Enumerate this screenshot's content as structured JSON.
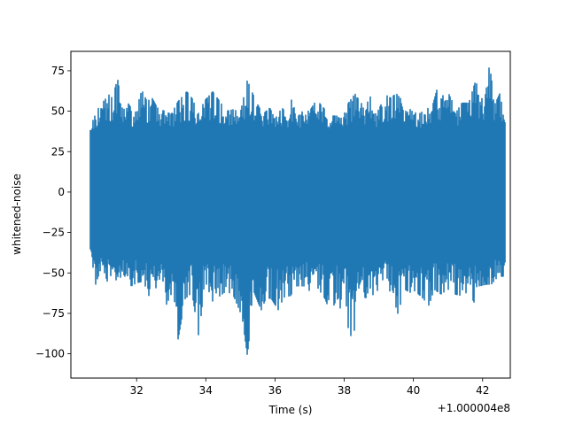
{
  "chart_data": {
    "type": "line",
    "title": "",
    "xlabel": "Time (s)",
    "ylabel": "whitened-noise",
    "x_offset_label": "+1.000004e8",
    "xlim": [
      30.1,
      42.8
    ],
    "ylim": [
      -115,
      87
    ],
    "x_ticks": [
      32,
      34,
      36,
      38,
      40,
      42
    ],
    "x_tick_labels": [
      "32",
      "34",
      "36",
      "38",
      "40",
      "42"
    ],
    "y_ticks": [
      75,
      50,
      25,
      0,
      -25,
      -50,
      -75,
      -100
    ],
    "y_tick_labels": [
      "75",
      "50",
      "25",
      "0",
      "−25",
      "−50",
      "−75",
      "−100"
    ],
    "grid": false,
    "series": [
      {
        "color": "#1f77b4",
        "x_range": [
          30.65,
          42.67
        ],
        "typical_range": [
          -35,
          35
        ],
        "max_envelope": [
          [
            30.65,
            38
          ],
          [
            30.75,
            45
          ],
          [
            30.9,
            52
          ],
          [
            31.0,
            55
          ],
          [
            31.2,
            60
          ],
          [
            31.3,
            58
          ],
          [
            31.45,
            70
          ],
          [
            31.6,
            50
          ],
          [
            31.75,
            55
          ],
          [
            31.95,
            48
          ],
          [
            32.15,
            63
          ],
          [
            32.3,
            56
          ],
          [
            32.45,
            58
          ],
          [
            32.6,
            52
          ],
          [
            32.8,
            50
          ],
          [
            33.0,
            48
          ],
          [
            33.2,
            56
          ],
          [
            33.45,
            62
          ],
          [
            33.6,
            58
          ],
          [
            33.8,
            48
          ],
          [
            33.95,
            56
          ],
          [
            34.2,
            62
          ],
          [
            34.4,
            56
          ],
          [
            34.6,
            50
          ],
          [
            34.8,
            51
          ],
          [
            35.0,
            49
          ],
          [
            35.2,
            69
          ],
          [
            35.45,
            56
          ],
          [
            35.65,
            48
          ],
          [
            35.85,
            52
          ],
          [
            36.0,
            45
          ],
          [
            36.2,
            52
          ],
          [
            36.4,
            47
          ],
          [
            36.5,
            60
          ],
          [
            36.6,
            45
          ],
          [
            36.8,
            50
          ],
          [
            37.0,
            50
          ],
          [
            37.2,
            57
          ],
          [
            37.4,
            52
          ],
          [
            37.6,
            47
          ],
          [
            37.8,
            47
          ],
          [
            38.0,
            51
          ],
          [
            38.25,
            59
          ],
          [
            38.4,
            62
          ],
          [
            38.6,
            52
          ],
          [
            38.75,
            59
          ],
          [
            38.95,
            49
          ],
          [
            39.2,
            60
          ],
          [
            39.35,
            58
          ],
          [
            39.5,
            61
          ],
          [
            39.7,
            56
          ],
          [
            39.95,
            50
          ],
          [
            40.15,
            48
          ],
          [
            40.35,
            51
          ],
          [
            40.55,
            53
          ],
          [
            40.7,
            65
          ],
          [
            40.9,
            58
          ],
          [
            41.0,
            67
          ],
          [
            41.2,
            48
          ],
          [
            41.4,
            55
          ],
          [
            41.6,
            55
          ],
          [
            41.8,
            69
          ],
          [
            41.9,
            61
          ],
          [
            42.05,
            55
          ],
          [
            42.2,
            79
          ],
          [
            42.35,
            54
          ],
          [
            42.5,
            61
          ],
          [
            42.67,
            40
          ]
        ],
        "min_envelope": [
          [
            30.65,
            -33
          ],
          [
            30.8,
            -58
          ],
          [
            31.0,
            -45
          ],
          [
            31.15,
            -55
          ],
          [
            31.3,
            -50
          ],
          [
            31.45,
            -56
          ],
          [
            31.6,
            -50
          ],
          [
            31.85,
            -58
          ],
          [
            32.0,
            -56
          ],
          [
            32.2,
            -55
          ],
          [
            32.35,
            -64
          ],
          [
            32.5,
            -58
          ],
          [
            32.7,
            -62
          ],
          [
            32.85,
            -70
          ],
          [
            33.0,
            -63
          ],
          [
            33.2,
            -91
          ],
          [
            33.4,
            -66
          ],
          [
            33.6,
            -62
          ],
          [
            33.8,
            -90
          ],
          [
            33.95,
            -58
          ],
          [
            34.15,
            -68
          ],
          [
            34.35,
            -65
          ],
          [
            34.6,
            -61
          ],
          [
            34.8,
            -64
          ],
          [
            35.05,
            -77
          ],
          [
            35.2,
            -101
          ],
          [
            35.4,
            -62
          ],
          [
            35.6,
            -73
          ],
          [
            35.75,
            -65
          ],
          [
            35.9,
            -66
          ],
          [
            36.1,
            -73
          ],
          [
            36.25,
            -65
          ],
          [
            36.45,
            -64
          ],
          [
            36.6,
            -58
          ],
          [
            36.85,
            -58
          ],
          [
            37.0,
            -61
          ],
          [
            37.2,
            -58
          ],
          [
            37.45,
            -66
          ],
          [
            37.6,
            -75
          ],
          [
            37.8,
            -65
          ],
          [
            37.9,
            -81
          ],
          [
            38.05,
            -67
          ],
          [
            38.2,
            -106
          ],
          [
            38.35,
            -73
          ],
          [
            38.5,
            -64
          ],
          [
            38.7,
            -66
          ],
          [
            38.9,
            -62
          ],
          [
            39.05,
            -59
          ],
          [
            39.2,
            -57
          ],
          [
            39.4,
            -64
          ],
          [
            39.55,
            -75
          ],
          [
            39.75,
            -60
          ],
          [
            39.9,
            -62
          ],
          [
            40.05,
            -61
          ],
          [
            40.25,
            -65
          ],
          [
            40.45,
            -70
          ],
          [
            40.6,
            -60
          ],
          [
            40.8,
            -63
          ],
          [
            41.0,
            -60
          ],
          [
            41.2,
            -63
          ],
          [
            41.4,
            -64
          ],
          [
            41.6,
            -61
          ],
          [
            41.75,
            -68
          ],
          [
            41.9,
            -58
          ],
          [
            42.1,
            -57
          ],
          [
            42.25,
            -57
          ],
          [
            42.45,
            -52
          ],
          [
            42.6,
            -52
          ],
          [
            42.67,
            -41
          ]
        ]
      }
    ]
  }
}
